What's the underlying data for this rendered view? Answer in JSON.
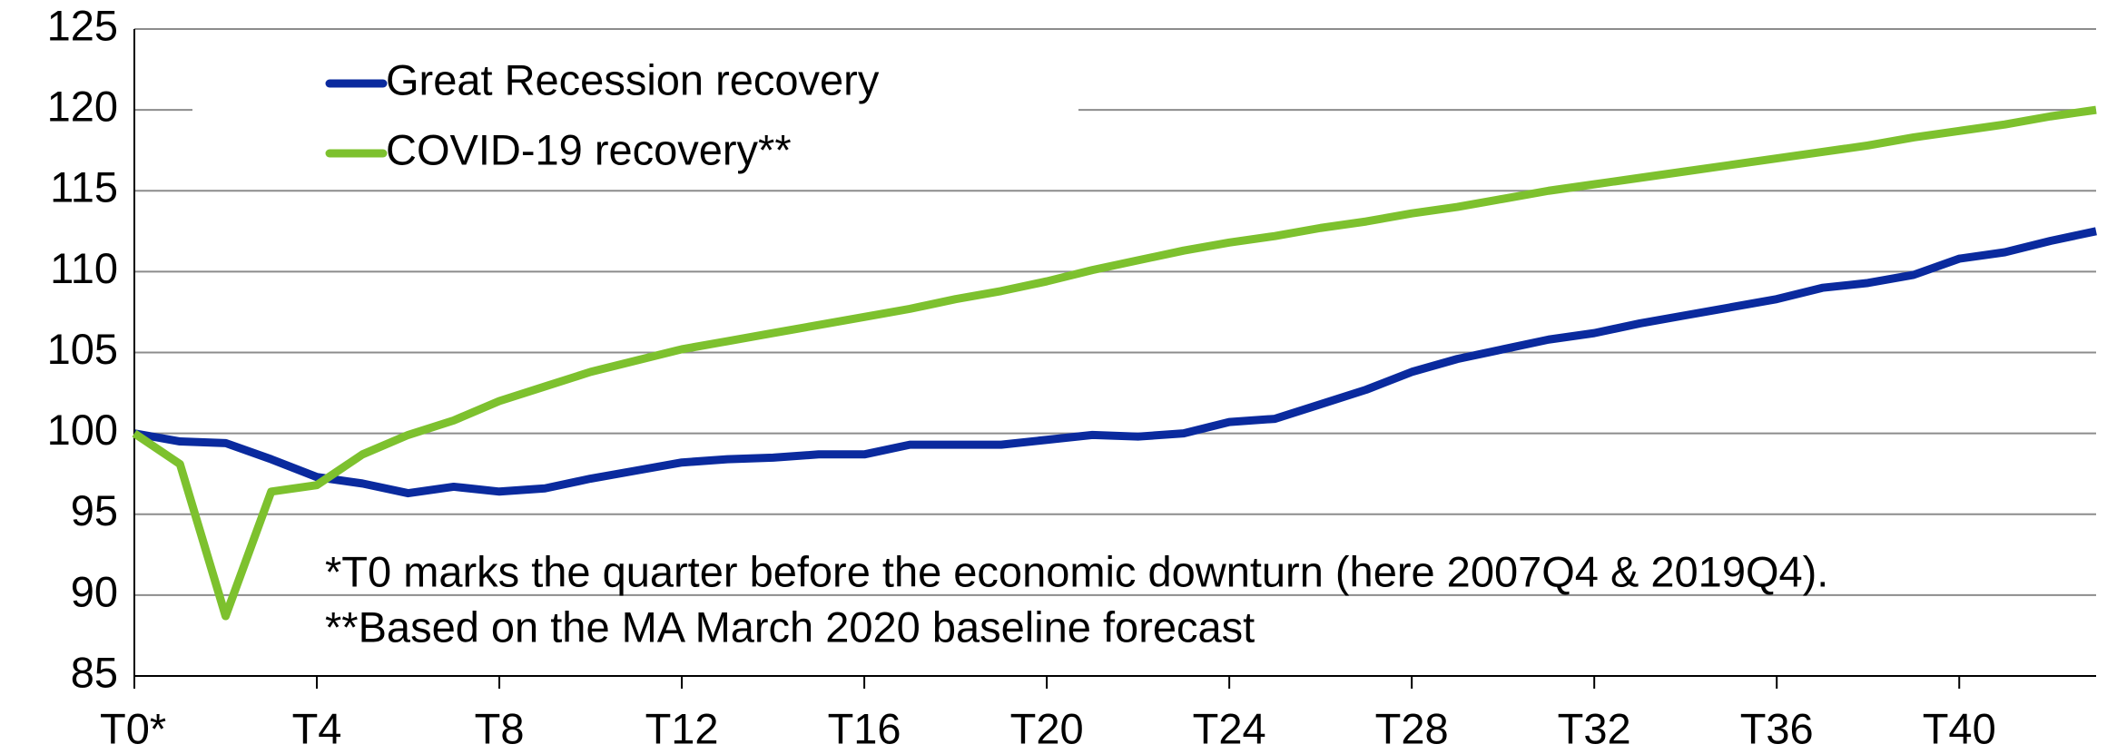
{
  "chart_data": {
    "type": "line",
    "x": [
      0,
      1,
      2,
      3,
      4,
      5,
      6,
      7,
      8,
      9,
      10,
      11,
      12,
      13,
      14,
      15,
      16,
      17,
      18,
      19,
      20,
      21,
      22,
      23,
      24,
      25,
      26,
      27,
      28,
      29,
      30,
      31,
      32,
      33,
      34,
      35,
      36,
      37,
      38,
      39,
      40,
      41,
      42,
      43
    ],
    "series": [
      {
        "name": "Great Recession recovery",
        "color": "#0a2a9e",
        "values": [
          100,
          99.5,
          99.4,
          98.4,
          97.3,
          96.9,
          96.3,
          96.7,
          96.4,
          96.6,
          97.2,
          97.7,
          98.2,
          98.4,
          98.5,
          98.7,
          98.7,
          99.3,
          99.3,
          99.3,
          99.6,
          99.9,
          99.8,
          100.0,
          100.7,
          100.9,
          101.8,
          102.7,
          103.8,
          104.6,
          105.2,
          105.8,
          106.2,
          106.8,
          107.3,
          107.8,
          108.3,
          109.0,
          109.3,
          109.8,
          110.8,
          111.2,
          111.9,
          112.5
        ]
      },
      {
        "name": "COVID-19 recovery**",
        "color": "#7dc12e",
        "values": [
          100,
          98.1,
          88.7,
          96.4,
          96.8,
          98.7,
          99.9,
          100.8,
          102.0,
          102.9,
          103.8,
          104.5,
          105.2,
          105.7,
          106.2,
          106.7,
          107.2,
          107.7,
          108.3,
          108.8,
          109.4,
          110.1,
          110.7,
          111.3,
          111.8,
          112.2,
          112.7,
          113.1,
          113.6,
          114.0,
          114.5,
          115.0,
          115.4,
          115.8,
          116.2,
          116.6,
          117.0,
          117.4,
          117.8,
          118.3,
          118.7,
          119.1,
          119.6,
          120.0
        ]
      }
    ],
    "xlim": [
      0,
      43
    ],
    "xticks": [
      {
        "value": 0,
        "label": "T0*"
      },
      {
        "value": 4,
        "label": "T4"
      },
      {
        "value": 8,
        "label": "T8"
      },
      {
        "value": 12,
        "label": "T12"
      },
      {
        "value": 16,
        "label": "T16"
      },
      {
        "value": 20,
        "label": "T20"
      },
      {
        "value": 24,
        "label": "T24"
      },
      {
        "value": 28,
        "label": "T28"
      },
      {
        "value": 32,
        "label": "T32"
      },
      {
        "value": 36,
        "label": "T36"
      },
      {
        "value": 40,
        "label": "T40"
      }
    ],
    "ylim": [
      85,
      125
    ],
    "yticks": [
      85,
      90,
      95,
      100,
      105,
      110,
      115,
      120,
      125
    ],
    "grid": true,
    "legend": "top-left",
    "annotations": [
      "*T0 marks the quarter before the economic downturn (here 2007Q4 & 2019Q4).",
      "**Based on the MA March 2020 baseline forecast"
    ]
  }
}
